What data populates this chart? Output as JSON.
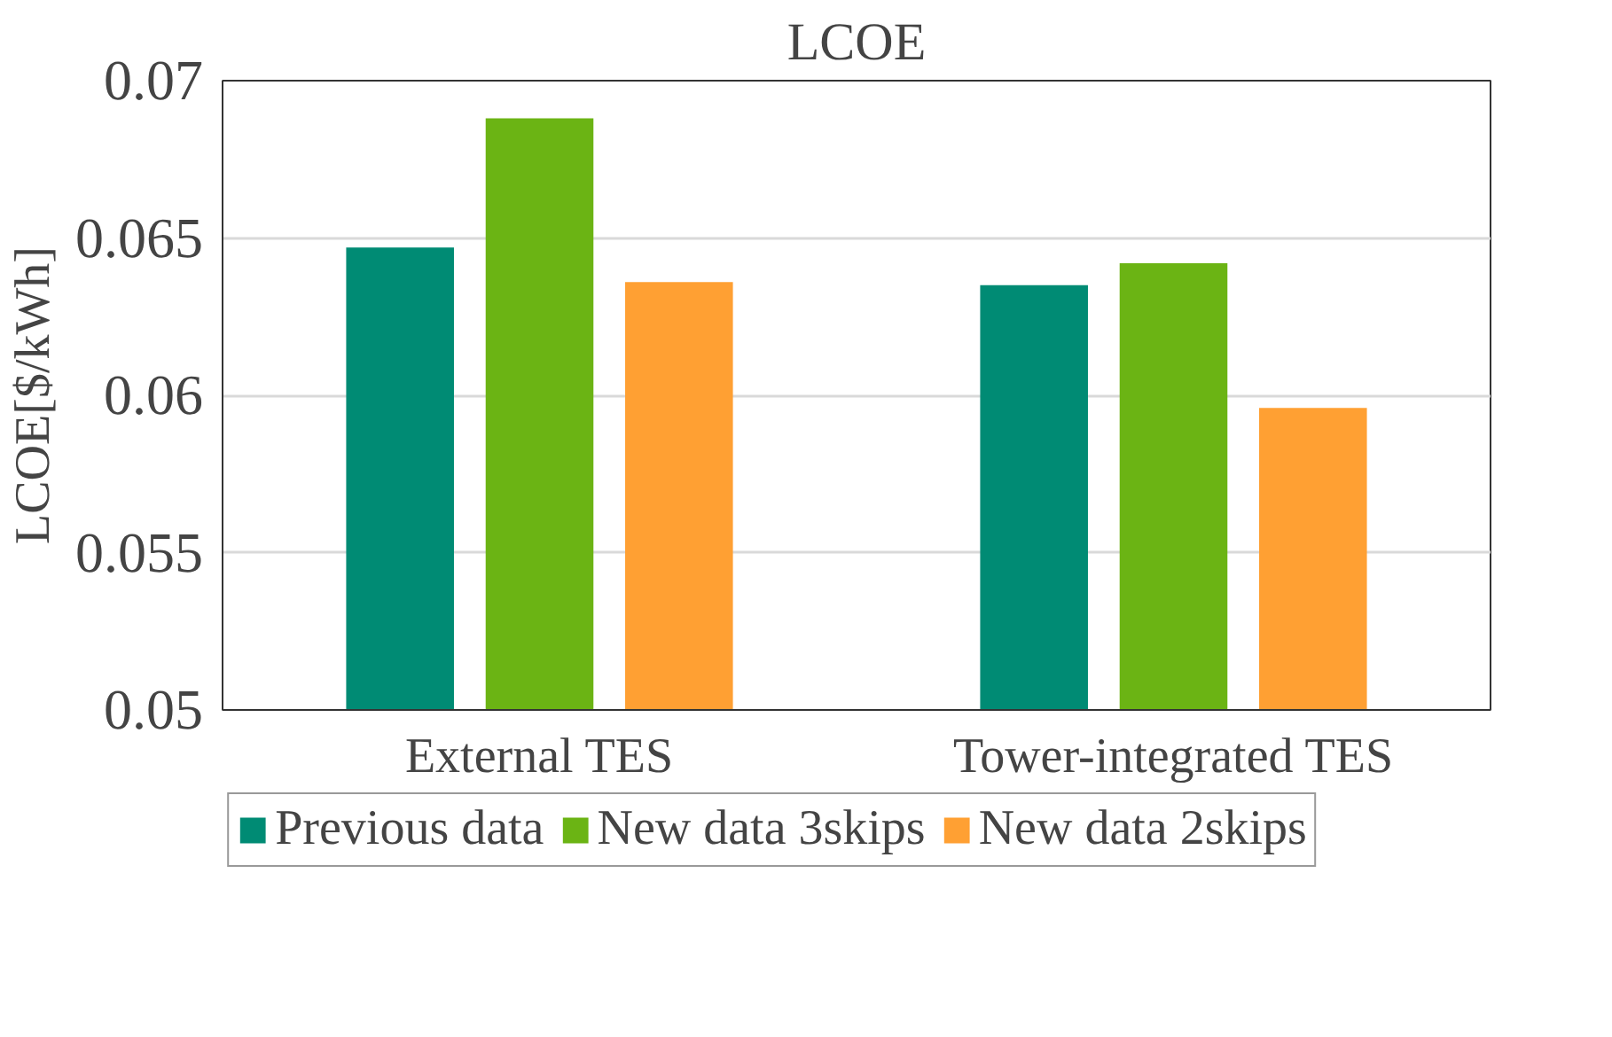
{
  "chart_data": {
    "type": "bar",
    "title": "LCOE",
    "ylabel": "LCOE[$/kWh]",
    "categories": [
      "External TES",
      "Tower-integrated TES"
    ],
    "series": [
      {
        "name": "Previous data",
        "color": "#008b74",
        "values": [
          0.0647,
          0.0635
        ]
      },
      {
        "name": "New data 3skips",
        "color": "#6bb414",
        "values": [
          0.0688,
          0.0642
        ]
      },
      {
        "name": "New data 2skips",
        "color": "#ffa033",
        "values": [
          0.0636,
          0.0596
        ]
      }
    ],
    "ylim": [
      0.05,
      0.07
    ],
    "yticks": [
      0.05,
      0.055,
      0.06,
      0.065,
      0.07
    ],
    "grid": "y",
    "legend": "bottom"
  }
}
